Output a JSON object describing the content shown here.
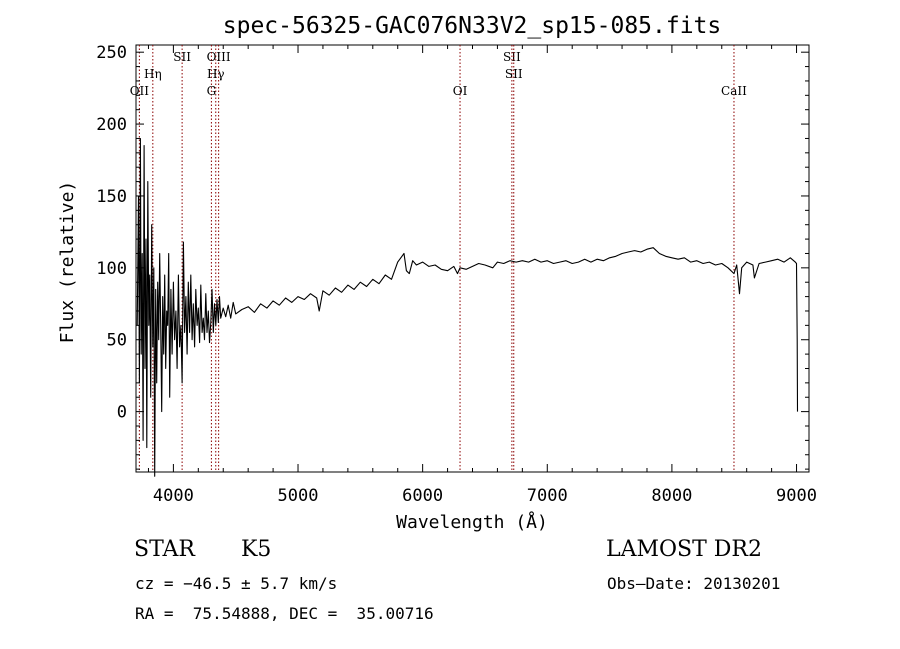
{
  "chart_data": {
    "type": "line",
    "title": "spec-56325-GAC076N33V2_sp15-085.fits",
    "xlabel": "Wavelength (Å)",
    "ylabel": "Flux (relative)",
    "xlim": [
      3700,
      9100
    ],
    "ylim": [
      -42,
      255
    ],
    "xticks": [
      4000,
      5000,
      6000,
      7000,
      8000,
      9000
    ],
    "yticks": [
      0,
      50,
      100,
      150,
      200,
      250
    ],
    "grid": false,
    "line_color": "#000000",
    "marker_color": "#8b0000",
    "spectral_lines": [
      {
        "label": "OII",
        "x": 3727,
        "row": 3
      },
      {
        "label": "Hη",
        "x": 3835,
        "row": 2
      },
      {
        "label": "SII",
        "x": 4070,
        "row": 1
      },
      {
        "label": "OIII",
        "x": 4363,
        "row": 1
      },
      {
        "label": "Hγ",
        "x": 4340,
        "row": 2
      },
      {
        "label": "G",
        "x": 4305,
        "row": 3
      },
      {
        "label": "OI",
        "x": 6300,
        "row": 3
      },
      {
        "label": "SII",
        "x": 6716,
        "row": 1
      },
      {
        "label": "SII",
        "x": 6731,
        "row": 2
      },
      {
        "label": "CaII",
        "x": 8498,
        "row": 3
      }
    ],
    "series": [
      {
        "name": "flux",
        "points": [
          [
            3710,
            60
          ],
          [
            3720,
            150
          ],
          [
            3727,
            20
          ],
          [
            3735,
            190
          ],
          [
            3742,
            40
          ],
          [
            3750,
            110
          ],
          [
            3757,
            -20
          ],
          [
            3765,
            185
          ],
          [
            3772,
            30
          ],
          [
            3780,
            120
          ],
          [
            3787,
            -25
          ],
          [
            3795,
            160
          ],
          [
            3803,
            60
          ],
          [
            3810,
            95
          ],
          [
            3818,
            10
          ],
          [
            3826,
            130
          ],
          [
            3835,
            45
          ],
          [
            3843,
            100
          ],
          [
            3850,
            -45
          ],
          [
            3858,
            85
          ],
          [
            3866,
            20
          ],
          [
            3874,
            90
          ],
          [
            3882,
            50
          ],
          [
            3890,
            110
          ],
          [
            3898,
            60
          ],
          [
            3906,
            0
          ],
          [
            3914,
            80
          ],
          [
            3922,
            40
          ],
          [
            3930,
            95
          ],
          [
            3938,
            30
          ],
          [
            3946,
            70
          ],
          [
            3954,
            60
          ],
          [
            3962,
            110
          ],
          [
            3970,
            10
          ],
          [
            3980,
            85
          ],
          [
            3990,
            40
          ],
          [
            4000,
            90
          ],
          [
            4010,
            50
          ],
          [
            4020,
            70
          ],
          [
            4030,
            30
          ],
          [
            4040,
            95
          ],
          [
            4050,
            45
          ],
          [
            4060,
            60
          ],
          [
            4070,
            20
          ],
          [
            4080,
            118
          ],
          [
            4090,
            55
          ],
          [
            4100,
            80
          ],
          [
            4110,
            40
          ],
          [
            4120,
            90
          ],
          [
            4130,
            55
          ],
          [
            4140,
            95
          ],
          [
            4150,
            50
          ],
          [
            4160,
            75
          ],
          [
            4170,
            45
          ],
          [
            4180,
            85
          ],
          [
            4190,
            60
          ],
          [
            4200,
            72
          ],
          [
            4210,
            48
          ],
          [
            4220,
            88
          ],
          [
            4230,
            55
          ],
          [
            4240,
            65
          ],
          [
            4250,
            50
          ],
          [
            4260,
            82
          ],
          [
            4270,
            55
          ],
          [
            4280,
            70
          ],
          [
            4290,
            48
          ],
          [
            4300,
            62
          ],
          [
            4310,
            85
          ],
          [
            4320,
            55
          ],
          [
            4330,
            75
          ],
          [
            4340,
            60
          ],
          [
            4350,
            78
          ],
          [
            4360,
            62
          ],
          [
            4370,
            80
          ],
          [
            4380,
            65
          ],
          [
            4400,
            72
          ],
          [
            4420,
            66
          ],
          [
            4440,
            74
          ],
          [
            4460,
            65
          ],
          [
            4480,
            76
          ],
          [
            4500,
            68
          ],
          [
            4550,
            71
          ],
          [
            4600,
            73
          ],
          [
            4650,
            69
          ],
          [
            4700,
            75
          ],
          [
            4750,
            72
          ],
          [
            4800,
            77
          ],
          [
            4850,
            74
          ],
          [
            4900,
            79
          ],
          [
            4950,
            76
          ],
          [
            5000,
            80
          ],
          [
            5050,
            78
          ],
          [
            5100,
            82
          ],
          [
            5150,
            79
          ],
          [
            5170,
            70
          ],
          [
            5200,
            84
          ],
          [
            5250,
            81
          ],
          [
            5300,
            86
          ],
          [
            5350,
            83
          ],
          [
            5400,
            88
          ],
          [
            5450,
            85
          ],
          [
            5500,
            90
          ],
          [
            5550,
            87
          ],
          [
            5600,
            92
          ],
          [
            5650,
            89
          ],
          [
            5700,
            95
          ],
          [
            5750,
            92
          ],
          [
            5800,
            104
          ],
          [
            5850,
            110
          ],
          [
            5870,
            98
          ],
          [
            5893,
            96
          ],
          [
            5920,
            105
          ],
          [
            5950,
            102
          ],
          [
            6000,
            104
          ],
          [
            6050,
            101
          ],
          [
            6100,
            102
          ],
          [
            6150,
            99
          ],
          [
            6200,
            98
          ],
          [
            6250,
            101
          ],
          [
            6280,
            96
          ],
          [
            6300,
            100
          ],
          [
            6350,
            99
          ],
          [
            6400,
            101
          ],
          [
            6450,
            103
          ],
          [
            6500,
            102
          ],
          [
            6563,
            100
          ],
          [
            6600,
            104
          ],
          [
            6650,
            103
          ],
          [
            6700,
            105
          ],
          [
            6750,
            104
          ],
          [
            6800,
            105
          ],
          [
            6850,
            104
          ],
          [
            6900,
            106
          ],
          [
            6950,
            104
          ],
          [
            7000,
            105
          ],
          [
            7050,
            103
          ],
          [
            7100,
            104
          ],
          [
            7150,
            105
          ],
          [
            7200,
            103
          ],
          [
            7250,
            104
          ],
          [
            7300,
            106
          ],
          [
            7350,
            104
          ],
          [
            7400,
            106
          ],
          [
            7450,
            105
          ],
          [
            7500,
            107
          ],
          [
            7550,
            108
          ],
          [
            7600,
            110
          ],
          [
            7650,
            111
          ],
          [
            7700,
            112
          ],
          [
            7750,
            111
          ],
          [
            7800,
            113
          ],
          [
            7850,
            114
          ],
          [
            7900,
            110
          ],
          [
            7950,
            108
          ],
          [
            8000,
            107
          ],
          [
            8050,
            106
          ],
          [
            8100,
            107
          ],
          [
            8150,
            104
          ],
          [
            8200,
            105
          ],
          [
            8250,
            103
          ],
          [
            8300,
            104
          ],
          [
            8350,
            102
          ],
          [
            8400,
            103
          ],
          [
            8450,
            100
          ],
          [
            8498,
            96
          ],
          [
            8520,
            102
          ],
          [
            8542,
            82
          ],
          [
            8560,
            100
          ],
          [
            8600,
            104
          ],
          [
            8650,
            102
          ],
          [
            8662,
            93
          ],
          [
            8700,
            103
          ],
          [
            8750,
            104
          ],
          [
            8800,
            105
          ],
          [
            8850,
            106
          ],
          [
            8900,
            104
          ],
          [
            8950,
            107
          ],
          [
            8990,
            104
          ],
          [
            9000,
            103
          ],
          [
            9005,
            50
          ],
          [
            9008,
            0
          ]
        ]
      }
    ]
  },
  "info": {
    "object_class": "STAR",
    "subclass": "K5",
    "release": "LAMOST DR2",
    "velocity": "cz = −46.5 ± 5.7 km/s",
    "obs_date": "Obs–Date: 20130201",
    "coords": "RA =  75.54888, DEC =  35.00716"
  }
}
